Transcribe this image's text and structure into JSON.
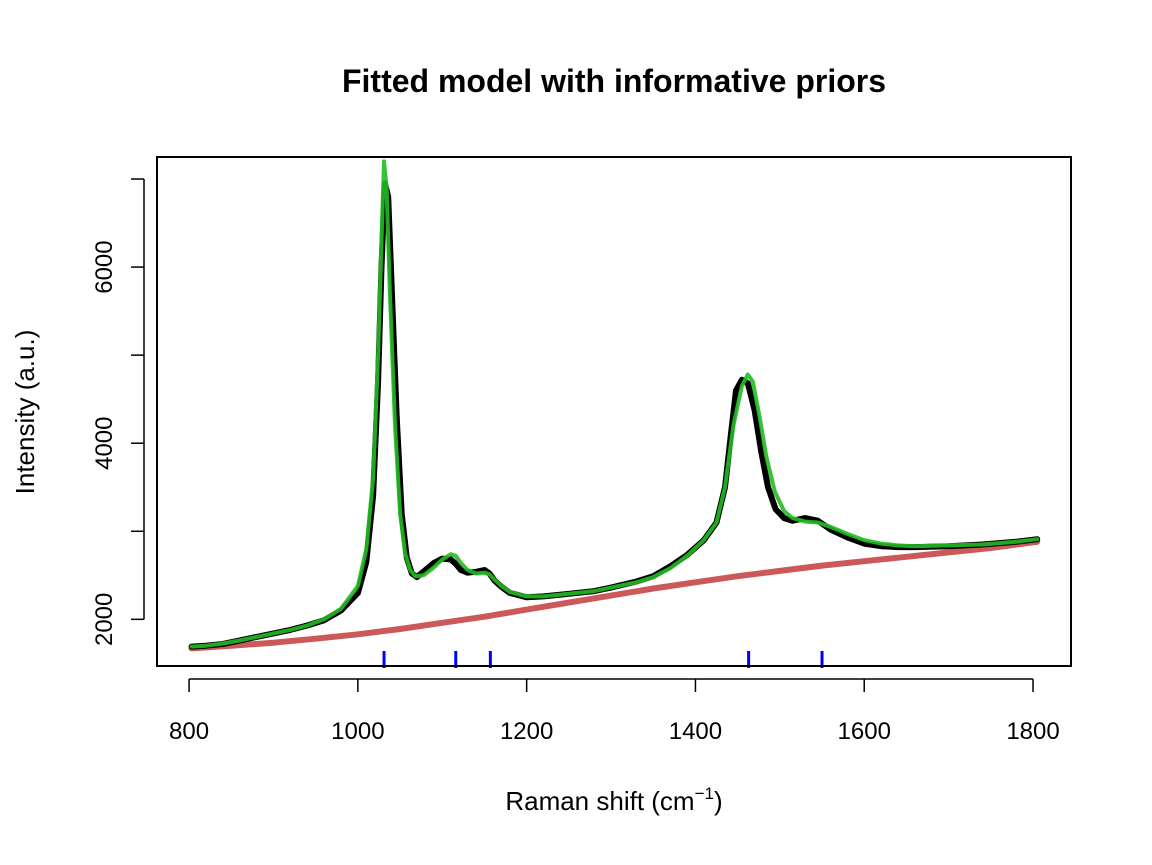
{
  "chart_data": {
    "type": "line",
    "title": "Fitted model with informative priors",
    "xlabel": "Raman shift (cm",
    "xlabel_sup": "−1",
    "xlabel_suffix": ")",
    "ylabel": "Intensity (a.u.)",
    "xlim": [
      762,
      1845
    ],
    "ylim": [
      1470,
      7250
    ],
    "xticks": [
      800,
      1000,
      1200,
      1400,
      1600,
      1800
    ],
    "yticks": [
      2000,
      4000,
      6000
    ],
    "grid": false,
    "legend": "none",
    "colors": {
      "observed": "#000000",
      "fitted": "#22bb22",
      "baseline": "#bb2222",
      "peak_marks": "#0000ff"
    },
    "series": [
      {
        "key": "observed",
        "x": [
          803,
          820,
          840,
          860,
          880,
          900,
          920,
          940,
          960,
          980,
          1000,
          1010,
          1018,
          1024,
          1028,
          1032,
          1036,
          1040,
          1046,
          1052,
          1058,
          1064,
          1070,
          1080,
          1090,
          1100,
          1110,
          1116,
          1122,
          1130,
          1140,
          1150,
          1156,
          1162,
          1170,
          1180,
          1200,
          1220,
          1250,
          1280,
          1300,
          1330,
          1350,
          1370,
          1390,
          1410,
          1425,
          1435,
          1442,
          1448,
          1455,
          1462,
          1470,
          1478,
          1486,
          1495,
          1505,
          1515,
          1530,
          1545,
          1560,
          1580,
          1600,
          1620,
          1640,
          1660,
          1700,
          1740,
          1780,
          1805
        ],
        "y": [
          1690,
          1700,
          1720,
          1760,
          1800,
          1840,
          1880,
          1930,
          1990,
          2100,
          2300,
          2650,
          3400,
          4700,
          6000,
          6950,
          6800,
          5800,
          4300,
          3200,
          2700,
          2520,
          2480,
          2560,
          2640,
          2690,
          2680,
          2630,
          2560,
          2530,
          2540,
          2560,
          2520,
          2440,
          2370,
          2300,
          2250,
          2260,
          2290,
          2320,
          2360,
          2430,
          2490,
          2600,
          2730,
          2900,
          3100,
          3500,
          4100,
          4600,
          4720,
          4680,
          4380,
          3900,
          3500,
          3250,
          3150,
          3120,
          3150,
          3120,
          3020,
          2930,
          2860,
          2830,
          2820,
          2820,
          2830,
          2850,
          2880,
          2910
        ]
      },
      {
        "key": "fitted",
        "x": [
          803,
          820,
          840,
          860,
          880,
          900,
          920,
          940,
          960,
          980,
          1000,
          1010,
          1018,
          1024,
          1028,
          1031,
          1034,
          1038,
          1044,
          1050,
          1056,
          1062,
          1068,
          1078,
          1090,
          1100,
          1110,
          1116,
          1122,
          1130,
          1140,
          1150,
          1156,
          1162,
          1170,
          1180,
          1200,
          1220,
          1250,
          1280,
          1300,
          1330,
          1350,
          1370,
          1390,
          1410,
          1425,
          1435,
          1445,
          1455,
          1462,
          1468,
          1476,
          1484,
          1494,
          1505,
          1515,
          1530,
          1545,
          1560,
          1580,
          1600,
          1620,
          1640,
          1660,
          1700,
          1740,
          1780,
          1805
        ],
        "y": [
          1690,
          1700,
          1725,
          1760,
          1800,
          1840,
          1880,
          1930,
          2000,
          2120,
          2380,
          2800,
          3600,
          5000,
          6300,
          7200,
          6900,
          5700,
          4200,
          3200,
          2750,
          2560,
          2490,
          2500,
          2590,
          2680,
          2740,
          2720,
          2640,
          2560,
          2520,
          2530,
          2510,
          2450,
          2380,
          2310,
          2260,
          2260,
          2290,
          2320,
          2360,
          2420,
          2480,
          2580,
          2720,
          2900,
          3100,
          3500,
          4200,
          4650,
          4780,
          4700,
          4300,
          3850,
          3450,
          3230,
          3150,
          3110,
          3100,
          3050,
          2970,
          2900,
          2860,
          2840,
          2830,
          2840,
          2850,
          2880,
          2910
        ]
      },
      {
        "key": "baseline",
        "x": [
          803,
          850,
          900,
          950,
          1000,
          1050,
          1100,
          1150,
          1200,
          1250,
          1300,
          1350,
          1400,
          1450,
          1500,
          1550,
          1600,
          1650,
          1700,
          1750,
          1805
        ],
        "y": [
          1670,
          1700,
          1735,
          1780,
          1830,
          1890,
          1960,
          2030,
          2110,
          2190,
          2270,
          2350,
          2420,
          2490,
          2550,
          2610,
          2660,
          2710,
          2760,
          2810,
          2880
        ]
      }
    ],
    "peak_markers_x": [
      1031,
      1116,
      1157,
      1463,
      1550
    ]
  }
}
